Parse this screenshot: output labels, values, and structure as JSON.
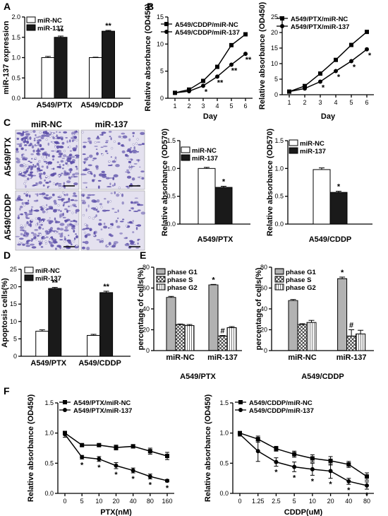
{
  "panel_letters": [
    "A",
    "B",
    "C",
    "D",
    "E",
    "F"
  ],
  "micrograph": {
    "col_titles": [
      "miR-NC",
      "miR-137"
    ],
    "row_titles": [
      "A549/PTX",
      "A549/CDDP"
    ],
    "stain_color": "#5b4ea8"
  },
  "colors": {
    "nc": "#ffffff",
    "mir": "#1a1a1a",
    "axis": "#000000"
  },
  "chart_data": [
    {
      "id": "A",
      "type": "bar",
      "categories": [
        "A549/PTX",
        "A549/CDDP"
      ],
      "series": [
        {
          "name": "miR-NC",
          "values": [
            1.0,
            1.0
          ],
          "err": [
            0.03,
            0.01
          ]
        },
        {
          "name": "miR-137",
          "values": [
            1.5,
            1.65
          ],
          "err": [
            0.03,
            0.02
          ]
        }
      ],
      "ylabel": "miR-137 expression",
      "ylim": [
        0,
        2.0
      ],
      "yticks": [
        "0.0",
        "0.5",
        "1.0",
        "1.5",
        "2.0"
      ],
      "annotations": [
        "**",
        "**"
      ]
    },
    {
      "id": "B1",
      "type": "line",
      "x": [
        1,
        2,
        3,
        4,
        5,
        6
      ],
      "series": [
        {
          "name": "A549/CDDP/miR-NC",
          "values": [
            1.0,
            1.6,
            3.2,
            5.8,
            9.8,
            11.8
          ]
        },
        {
          "name": "A549/CDDP/miR-137",
          "values": [
            1.0,
            1.3,
            2.3,
            4.0,
            6.2,
            8.2
          ]
        }
      ],
      "stars": [
        "",
        "",
        "*",
        "**",
        "**",
        "**"
      ],
      "xlabel": "Day",
      "ylabel": "Relative absorbance (OD450)",
      "ylim": [
        0,
        15
      ],
      "yticks": [
        "0",
        "5",
        "10",
        "15"
      ],
      "xticks": [
        "1",
        "2",
        "3",
        "4",
        "5",
        "6"
      ]
    },
    {
      "id": "B2",
      "type": "line",
      "x": [
        1,
        2,
        3,
        4,
        5,
        6
      ],
      "series": [
        {
          "name": "A549/PTX/miR-NC",
          "values": [
            1.0,
            2.8,
            6.8,
            11.2,
            16.0,
            20.2
          ]
        },
        {
          "name": "A549/PTX/miR-137",
          "values": [
            1.0,
            2.0,
            4.2,
            7.6,
            10.8,
            14.6
          ]
        }
      ],
      "stars": [
        "",
        "",
        "*",
        "*",
        "*",
        "*"
      ],
      "xlabel": "Day",
      "ylabel": "Relative absorbance (OD450)",
      "ylim": [
        0,
        25
      ],
      "yticks": [
        "0",
        "5",
        "10",
        "15",
        "20",
        "25"
      ],
      "xticks": [
        "1",
        "2",
        "3",
        "4",
        "5",
        "6"
      ]
    },
    {
      "id": "C1",
      "type": "bar",
      "categories": [
        "A549/PTX"
      ],
      "series": [
        {
          "name": "miR-NC",
          "values": [
            1.0
          ],
          "err": [
            0.02
          ]
        },
        {
          "name": "miR-137",
          "values": [
            0.66
          ],
          "err": [
            0.02
          ]
        }
      ],
      "xlabel": "A549/PTX",
      "ylabel": "Relative absorbance (OD570)",
      "ylim": [
        0,
        1.5
      ],
      "yticks": [
        "0.0",
        "0.5",
        "1.0",
        "1.5"
      ],
      "annotations": [
        "*"
      ]
    },
    {
      "id": "C2",
      "type": "bar",
      "categories": [
        "A549/CDDP"
      ],
      "series": [
        {
          "name": "miR-NC",
          "values": [
            0.98
          ],
          "err": [
            0.03
          ]
        },
        {
          "name": "miR-137",
          "values": [
            0.57
          ],
          "err": [
            0.02
          ]
        }
      ],
      "xlabel": "A549/CDDP",
      "ylabel": "Relative absorbance (OD570)",
      "ylim": [
        0,
        1.5
      ],
      "yticks": [
        "0.0",
        "0.5",
        "1.0",
        "1.5"
      ],
      "annotations": [
        "*"
      ]
    },
    {
      "id": "D",
      "type": "bar",
      "categories": [
        "A549/PTX",
        "A549/CDDP"
      ],
      "series": [
        {
          "name": "miR-NC",
          "values": [
            7.2,
            6.0
          ],
          "err": [
            0.4,
            0.3
          ]
        },
        {
          "name": "miR-137",
          "values": [
            19.5,
            18.3
          ],
          "err": [
            0.3,
            0.4
          ]
        }
      ],
      "ylabel": "Apoptosis cells(%)",
      "ylim": [
        0,
        25
      ],
      "yticks": [
        "0",
        "5",
        "10",
        "15",
        "20",
        "25"
      ],
      "annotations": [
        "**",
        "**"
      ]
    },
    {
      "id": "E1",
      "type": "bar",
      "categories": [
        "miR-NC",
        "miR-137"
      ],
      "series": [
        {
          "name": "phase G1",
          "values": [
            51,
            63
          ],
          "err": [
            1,
            0.5
          ]
        },
        {
          "name": "phase S",
          "values": [
            25,
            14
          ],
          "err": [
            0.5,
            0.5
          ]
        },
        {
          "name": "phase G2",
          "values": [
            24,
            22
          ],
          "err": [
            1,
            1
          ]
        }
      ],
      "xlabel": "A549/PTX",
      "ylabel": "percentage of cells(%)",
      "ylim": [
        0,
        80
      ],
      "yticks": [
        "0",
        "20",
        "40",
        "60",
        "80"
      ],
      "annotations": [
        {
          "group": 1,
          "series": 0,
          "text": "*"
        },
        {
          "group": 1,
          "series": 1,
          "text": "#"
        }
      ]
    },
    {
      "id": "E2",
      "type": "bar",
      "categories": [
        "miR-NC",
        "miR-137"
      ],
      "series": [
        {
          "name": "phase G1",
          "values": [
            48,
            69
          ],
          "err": [
            1,
            1.5
          ]
        },
        {
          "name": "phase S",
          "values": [
            25,
            14
          ],
          "err": [
            0.8,
            6
          ]
        },
        {
          "name": "phase G2",
          "values": [
            27,
            16
          ],
          "err": [
            2,
            3.5
          ]
        }
      ],
      "xlabel": "A549/CDDP",
      "ylabel": "percentage of cells(%)",
      "ylim": [
        0,
        80
      ],
      "yticks": [
        "0",
        "20",
        "40",
        "60",
        "80"
      ],
      "annotations": [
        {
          "group": 1,
          "series": 0,
          "text": "*"
        },
        {
          "group": 1,
          "series": 1,
          "text": "#"
        }
      ]
    },
    {
      "id": "F1",
      "type": "line",
      "x": [
        "0",
        "5",
        "10",
        "20",
        "40",
        "80",
        "160"
      ],
      "series": [
        {
          "name": "A549/PTX/miR-NC",
          "values": [
            1.0,
            0.8,
            0.8,
            0.76,
            0.78,
            0.7,
            0.62
          ],
          "err": [
            0.03,
            0.02,
            0.02,
            0.04,
            0.03,
            0.05,
            0.06
          ]
        },
        {
          "name": "A549/PTX/miR-137",
          "values": [
            0.98,
            0.6,
            0.57,
            0.46,
            0.38,
            0.28,
            0.21
          ],
          "err": [
            0.05,
            0.03,
            0.04,
            0.05,
            0.04,
            0.04,
            0.02
          ]
        }
      ],
      "stars": [
        "",
        "*",
        "*",
        "*",
        "*",
        "*",
        "*"
      ],
      "xlabel": "PTX(nM)",
      "ylabel": "Relative absorbance (OD450)",
      "ylim": [
        0,
        1.5
      ],
      "yticks": [
        "0.0",
        "0.5",
        "1.0",
        "1.5"
      ]
    },
    {
      "id": "F2",
      "type": "line",
      "x": [
        "0",
        "1.25",
        "2.5",
        "5",
        "10",
        "20",
        "40",
        "80"
      ],
      "series": [
        {
          "name": "A549/CDDP/miR-NC",
          "values": [
            1.0,
            0.9,
            0.74,
            0.65,
            0.58,
            0.54,
            0.48,
            0.28
          ],
          "err": [
            0.02,
            0.05,
            0.04,
            0.05,
            0.06,
            0.07,
            0.05,
            0.06
          ]
        },
        {
          "name": "A549/CDDP/miR-137",
          "values": [
            0.98,
            0.7,
            0.52,
            0.44,
            0.4,
            0.37,
            0.2,
            0.13
          ],
          "err": [
            0.03,
            0.17,
            0.07,
            0.08,
            0.1,
            0.12,
            0.05,
            0.06
          ]
        }
      ],
      "stars": [
        "",
        "",
        "*",
        "*",
        "*",
        "*",
        "*",
        "*"
      ],
      "xlabel": "CDDP(uM)",
      "ylabel": "Relative absorbance (OD450)",
      "ylim": [
        0,
        1.5
      ],
      "yticks": [
        "0.0",
        "0.5",
        "1.0",
        "1.5"
      ]
    }
  ]
}
